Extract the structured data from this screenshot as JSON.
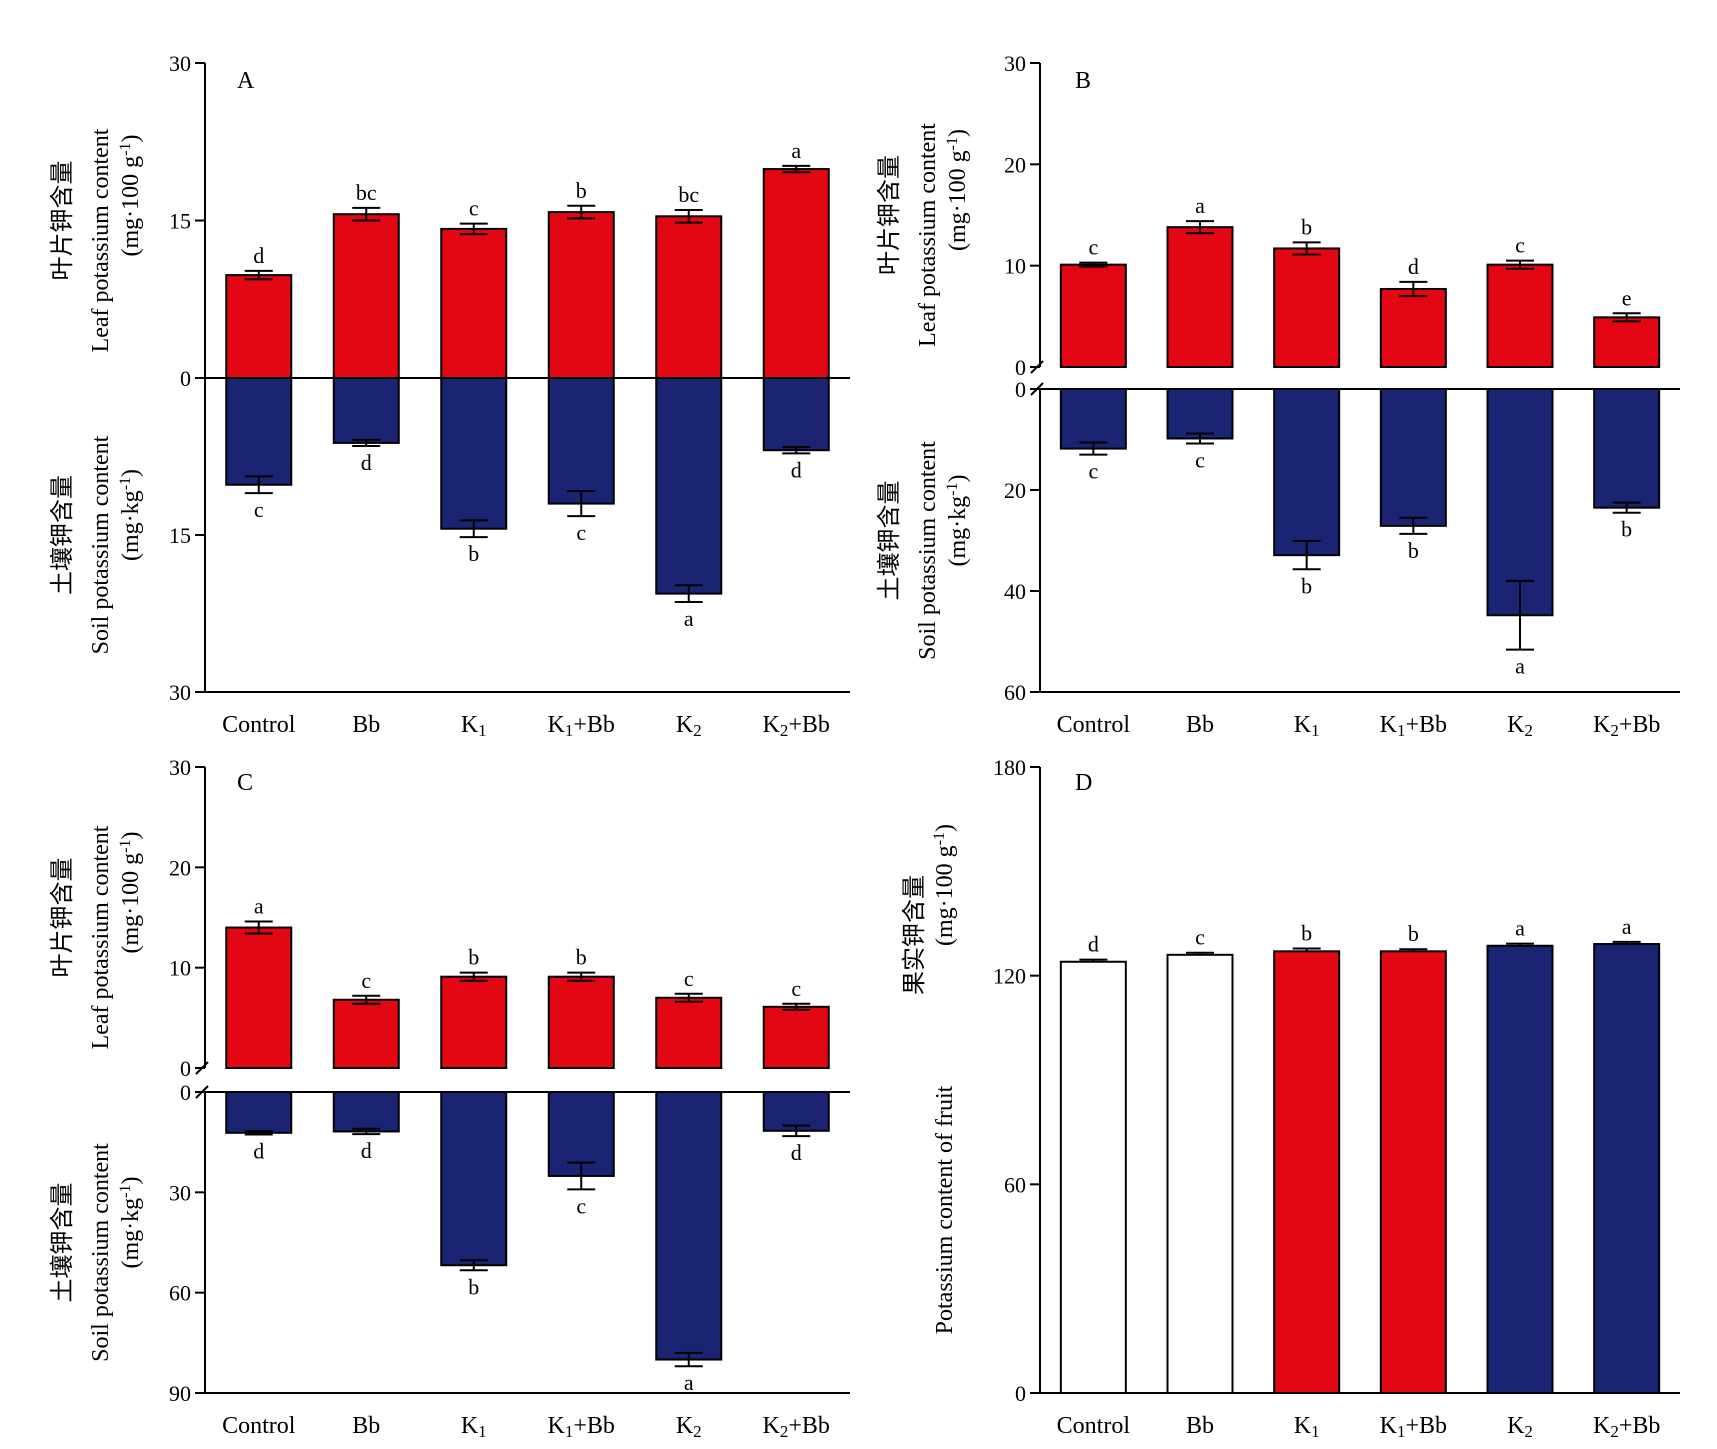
{
  "colors": {
    "leaf_bar": "#e30613",
    "soil_bar": "#1a2472",
    "white_bar": "#ffffff",
    "outline": "#000000"
  },
  "categories": [
    "Control",
    "Bb",
    "K1",
    "K1+Bb",
    "K2",
    "K2+Bb"
  ],
  "chart_data": [
    {
      "type": "bar",
      "panel": "A",
      "top": {
        "ylabel_cn": "叶片钾含量",
        "ylabel": "Leaf potassium content",
        "yunit": "(mg·100 g-1)",
        "ylim": [
          0,
          30
        ],
        "ticks": [
          "0",
          "15",
          "30"
        ],
        "values": [
          9.8,
          15.6,
          14.2,
          15.8,
          15.4,
          19.9
        ],
        "errors": [
          0.4,
          0.6,
          0.5,
          0.6,
          0.6,
          0.3
        ],
        "letters": [
          "d",
          "bc",
          "c",
          "b",
          "bc",
          "a"
        ]
      },
      "bottom": {
        "ylabel_cn": "土壤钾含量",
        "ylabel": "Soil potassium content",
        "yunit": "(mg·kg-1)",
        "ylim": [
          0,
          30
        ],
        "ticks": [
          "15",
          "30"
        ],
        "values": [
          10.2,
          6.2,
          14.4,
          12.0,
          20.6,
          6.9
        ],
        "errors": [
          0.8,
          0.3,
          0.8,
          1.2,
          0.8,
          0.3
        ],
        "letters": [
          "c",
          "d",
          "b",
          "c",
          "a",
          "d"
        ]
      },
      "axis_break": false
    },
    {
      "type": "bar",
      "panel": "B",
      "top": {
        "ylabel_cn": "叶片钾含量",
        "ylabel": "Leaf potassium content",
        "yunit": "(mg·100 g-1)",
        "ylim": [
          0,
          30
        ],
        "ticks": [
          "0",
          "10",
          "20",
          "30"
        ],
        "values": [
          10.1,
          13.8,
          11.7,
          7.7,
          10.1,
          4.9
        ],
        "errors": [
          0.2,
          0.6,
          0.6,
          0.7,
          0.4,
          0.4
        ],
        "letters": [
          "c",
          "a",
          "b",
          "d",
          "c",
          "e"
        ]
      },
      "bottom": {
        "ylabel_cn": "土壤钾含量",
        "ylabel": "Soil potassium content",
        "yunit": "(mg·kg-1)",
        "ylim": [
          0,
          60
        ],
        "ticks": [
          "0",
          "20",
          "40",
          "60"
        ],
        "values": [
          11.8,
          9.8,
          32.9,
          27.1,
          44.8,
          23.5
        ],
        "errors": [
          1.2,
          1.0,
          2.8,
          1.6,
          6.8,
          1.0
        ],
        "letters": [
          "c",
          "c",
          "b",
          "b",
          "a",
          "b"
        ]
      },
      "axis_break": true
    },
    {
      "type": "bar",
      "panel": "C",
      "top": {
        "ylabel_cn": "叶片钾含量",
        "ylabel": "Leaf potassium content",
        "yunit": "(mg·100 g-1)",
        "ylim": [
          0,
          30
        ],
        "ticks": [
          "0",
          "10",
          "20",
          "30"
        ],
        "values": [
          14.0,
          6.8,
          9.1,
          9.1,
          7.0,
          6.1
        ],
        "errors": [
          0.6,
          0.4,
          0.4,
          0.4,
          0.4,
          0.3
        ],
        "letters": [
          "a",
          "c",
          "b",
          "b",
          "c",
          "c"
        ]
      },
      "bottom": {
        "ylabel_cn": "土壤钾含量",
        "ylabel": "Soil potassium content",
        "yunit": "(mg·kg-1)",
        "ylim": [
          0,
          90
        ],
        "ticks": [
          "0",
          "30",
          "60",
          "90"
        ],
        "values": [
          12.2,
          11.8,
          51.8,
          25.1,
          80.0,
          11.6
        ],
        "errors": [
          0.5,
          0.8,
          1.5,
          4.0,
          2.0,
          1.6
        ],
        "letters": [
          "d",
          "d",
          "b",
          "c",
          "a",
          "d"
        ]
      },
      "axis_break": true
    },
    {
      "type": "bar",
      "panel": "D",
      "ylabel_cn": "果实钾含量",
      "ylabel": "Potassium content of fruit",
      "yunit": "(mg·100 g-1)",
      "ylim": [
        0,
        180
      ],
      "ticks": [
        "0",
        "60",
        "120",
        "180"
      ],
      "values": [
        124.0,
        126.0,
        127.0,
        127.0,
        128.6,
        129.1
      ],
      "errors": [
        0.6,
        0.6,
        0.8,
        0.6,
        0.6,
        0.6
      ],
      "letters": [
        "d",
        "c",
        "b",
        "b",
        "a",
        "a"
      ],
      "bar_colors": [
        "#ffffff",
        "#ffffff",
        "#e30613",
        "#e30613",
        "#1a2472",
        "#1a2472"
      ]
    }
  ]
}
